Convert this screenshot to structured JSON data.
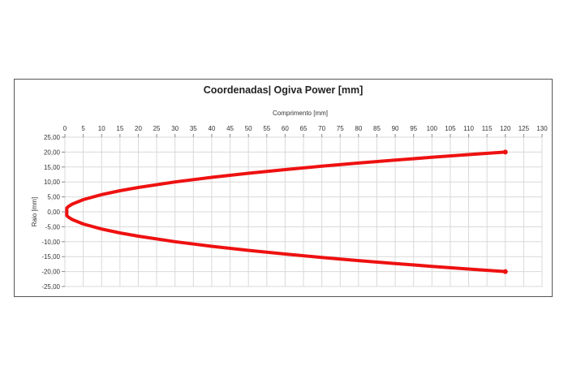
{
  "chart_data": {
    "type": "line",
    "title": "Coordenadas| Ogiva Power [mm]",
    "xlabel": "Comprimento  [mm]",
    "ylabel": "Raio  [mm]",
    "x_axis_position": "top",
    "xlim": [
      0,
      130
    ],
    "ylim": [
      -25,
      25
    ],
    "x_ticks": [
      "0",
      "5",
      "10",
      "15",
      "20",
      "25",
      "30",
      "35",
      "40",
      "45",
      "50",
      "55",
      "60",
      "65",
      "70",
      "75",
      "80",
      "85",
      "90",
      "95",
      "100",
      "105",
      "110",
      "115",
      "120",
      "125",
      "130"
    ],
    "y_ticks": [
      "25,00",
      "20,00",
      "15,00",
      "10,00",
      "5,00",
      "0,00",
      "-5,00",
      "-10,00",
      "-15,00",
      "-20,00",
      "-25,00"
    ],
    "grid": true,
    "legend": "none",
    "color": "#ee1111",
    "series": [
      {
        "x": [
          120,
          110,
          100,
          90,
          80,
          70,
          60,
          50,
          40,
          30,
          20,
          15,
          10,
          5,
          2,
          1,
          0.5,
          0.5,
          1,
          2,
          5,
          10,
          15,
          20,
          30,
          40,
          50,
          60,
          70,
          80,
          90,
          100,
          110,
          120
        ],
        "y": [
          20.0,
          19.15,
          18.26,
          17.32,
          16.33,
          15.28,
          14.14,
          12.91,
          11.55,
          10.0,
          8.16,
          7.07,
          5.77,
          4.08,
          2.58,
          1.83,
          1.29,
          -1.29,
          -1.83,
          -2.58,
          -4.08,
          -5.77,
          -7.07,
          -8.16,
          -10.0,
          -11.55,
          -12.91,
          -14.14,
          -15.28,
          -16.33,
          -17.32,
          -18.26,
          -19.15,
          -20.0
        ]
      }
    ]
  }
}
